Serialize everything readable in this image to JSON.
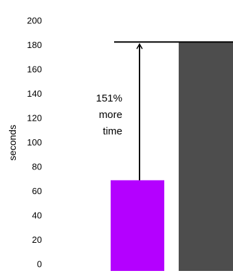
{
  "chart_data": {
    "type": "bar",
    "categories": [
      "",
      ""
    ],
    "values": [
      74.5,
      188
    ],
    "colors": [
      "#b400ff",
      "#4d4d4d"
    ],
    "xlabel": "",
    "ylabel": "seconds",
    "ylim": [
      0,
      200
    ],
    "yticks": [
      "0",
      "20",
      "40",
      "60",
      "80",
      "100",
      "120",
      "140",
      "160",
      "180",
      "200"
    ],
    "grid": false,
    "legend": "none",
    "annotation": {
      "lines": [
        "151%",
        "more",
        "time"
      ],
      "reference_value": 188,
      "from_value": 74.5,
      "arrow_color": "#000000"
    }
  }
}
